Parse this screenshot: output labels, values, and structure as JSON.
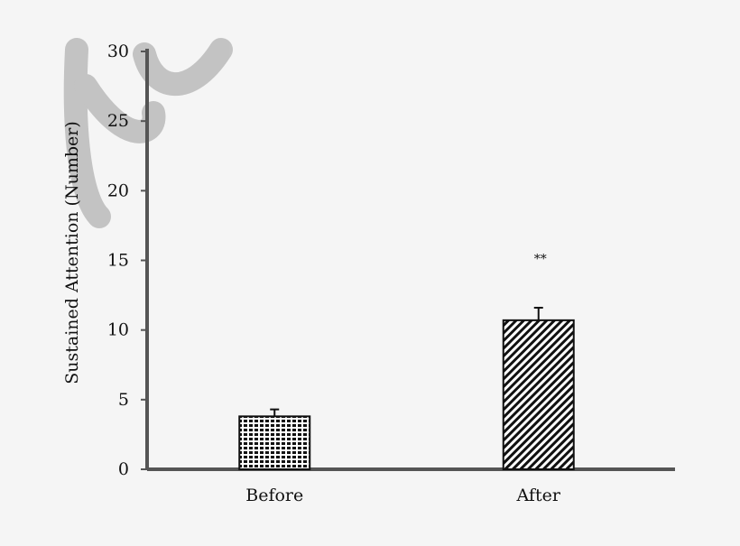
{
  "chart_data": {
    "type": "bar",
    "title": "",
    "xlabel": "",
    "ylabel": "Sustained Attention (Number)",
    "ylim": [
      0,
      30
    ],
    "yticks": [
      0,
      5,
      10,
      15,
      20,
      25,
      30
    ],
    "grid": false,
    "categories": [
      "Before",
      "After"
    ],
    "values": [
      3.8,
      10.7
    ],
    "errors": [
      0.5,
      0.9
    ],
    "patterns": [
      "dense-brick",
      "diagonal-hatch"
    ],
    "annotations": [
      {
        "category": "After",
        "text": "**",
        "y": 15
      }
    ]
  },
  "colors": {
    "background": "#f5f5f5",
    "axis": "#555555",
    "bar_fill": "#111111",
    "bar_stroke": "#111111",
    "watermark": "#bbbbbb"
  }
}
